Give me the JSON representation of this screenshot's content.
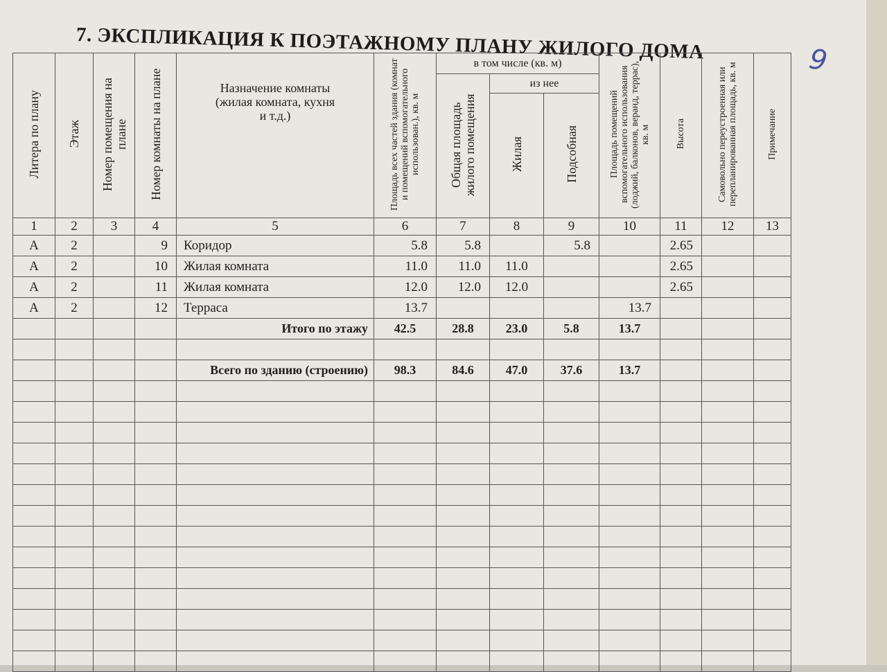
{
  "title": "7. ЭКСПЛИКАЦИЯ К ПОЭТАЖНОМУ ПЛАНУ ЖИЛОГО ДОМА",
  "page_number": "9",
  "headers": {
    "c1": "Литера по плану",
    "c2": "Этаж",
    "c3": "Номер помещения на плане",
    "c4": "Номер комнаты на плане",
    "c5": "Назначение комнаты (жилая комната, кухня и т.д.)",
    "c6": "Площадь всех частей здания (комнат и помещений вспомогательного использован.), кв. м",
    "group": "в том числе (кв. м)",
    "c7": "Общая площадь жилого помещения",
    "subgroup": "из нее",
    "c8": "Жилая",
    "c9": "Подсобная",
    "c10": "Площадь помещений вспомогательного использования (лоджий, балконов, веранд, террас), кв. м",
    "c11": "Высота",
    "c12": "Самовольно переустроенная или перепланированная площадь, кв. м",
    "c13": "Примечание"
  },
  "column_numbers": [
    "1",
    "2",
    "3",
    "4",
    "5",
    "6",
    "7",
    "8",
    "9",
    "10",
    "11",
    "12",
    "13"
  ],
  "rows": [
    {
      "litera": "А",
      "floor": "2",
      "premise": "",
      "room": "9",
      "name": "Коридор",
      "total": "5.8",
      "general": "5.8",
      "living": "",
      "auxiliary": "5.8",
      "aux_use": "",
      "height": "2.65"
    },
    {
      "litera": "А",
      "floor": "2",
      "premise": "",
      "room": "10",
      "name": "Жилая комната",
      "total": "11.0",
      "general": "11.0",
      "living": "11.0",
      "auxiliary": "",
      "aux_use": "",
      "height": "2.65"
    },
    {
      "litera": "А",
      "floor": "2",
      "premise": "",
      "room": "11",
      "name": "Жилая комната",
      "total": "12.0",
      "general": "12.0",
      "living": "12.0",
      "auxiliary": "",
      "aux_use": "",
      "height": "2.65"
    },
    {
      "litera": "А",
      "floor": "2",
      "premise": "",
      "room": "12",
      "name": "Терраса",
      "total": "13.7",
      "general": "",
      "living": "",
      "auxiliary": "",
      "aux_use": "13.7",
      "height": ""
    }
  ],
  "floor_total": {
    "label": "Итого по этажу",
    "total": "42.5",
    "general": "28.8",
    "living": "23.0",
    "auxiliary": "5.8",
    "aux_use": "13.7"
  },
  "building_total": {
    "label": "Всего по зданию (строению)",
    "total": "98.3",
    "general": "84.6",
    "living": "47.0",
    "auxiliary": "37.6",
    "aux_use": "13.7"
  }
}
